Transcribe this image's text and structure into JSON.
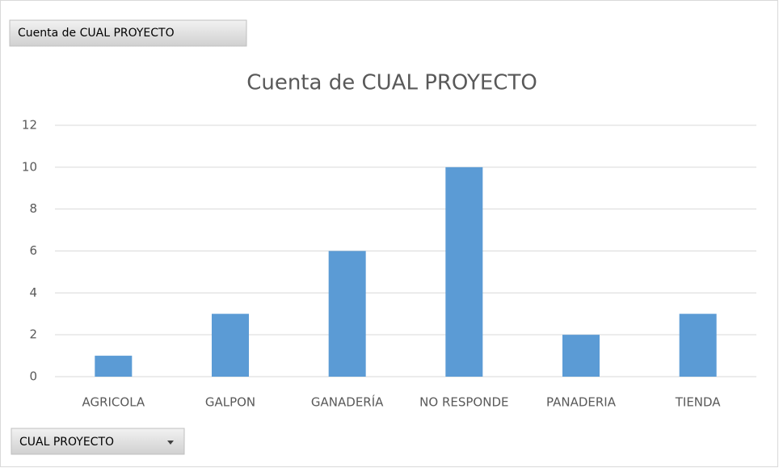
{
  "pivot_buttons": {
    "value_field": "Cuenta de CUAL PROYECTO",
    "axis_field": "CUAL PROYECTO"
  },
  "chart_data": {
    "type": "bar",
    "title": "Cuenta de CUAL PROYECTO",
    "categories": [
      "AGRICOLA",
      "GALPON",
      "GANADERÍA",
      "NO RESPONDE",
      "PANADERIA",
      "TIENDA"
    ],
    "values": [
      1,
      3,
      6,
      10,
      2,
      3
    ],
    "color": "#5b9bd5",
    "ylim": [
      0,
      12
    ],
    "yticks": [
      0,
      2,
      4,
      6,
      8,
      10,
      12
    ],
    "grid": true
  }
}
